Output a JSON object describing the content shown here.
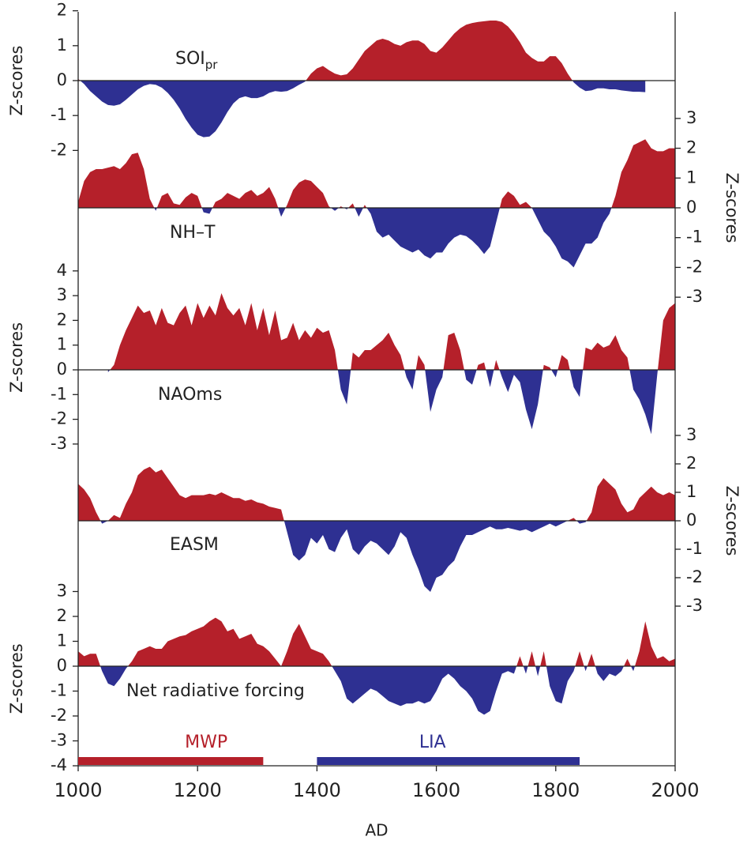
{
  "chart_data": {
    "type": "area",
    "xlabel": "AD",
    "xlim": [
      1000,
      2000
    ],
    "xticks": [
      1000,
      1200,
      1400,
      1600,
      1800,
      2000
    ],
    "x": [
      1000,
      1010,
      1020,
      1030,
      1040,
      1050,
      1060,
      1070,
      1080,
      1090,
      1100,
      1110,
      1120,
      1130,
      1140,
      1150,
      1160,
      1170,
      1180,
      1190,
      1200,
      1210,
      1220,
      1230,
      1240,
      1250,
      1260,
      1270,
      1280,
      1290,
      1300,
      1310,
      1320,
      1330,
      1340,
      1350,
      1360,
      1370,
      1380,
      1390,
      1400,
      1410,
      1420,
      1430,
      1440,
      1450,
      1460,
      1470,
      1480,
      1490,
      1500,
      1510,
      1520,
      1530,
      1540,
      1550,
      1560,
      1570,
      1580,
      1590,
      1600,
      1610,
      1620,
      1630,
      1640,
      1650,
      1660,
      1670,
      1680,
      1690,
      1700,
      1710,
      1720,
      1730,
      1740,
      1750,
      1760,
      1770,
      1780,
      1790,
      1800,
      1810,
      1820,
      1830,
      1840,
      1850,
      1860,
      1870,
      1880,
      1890,
      1900,
      1910,
      1920,
      1930,
      1940,
      1950,
      1960,
      1970,
      1980,
      1990,
      2000
    ],
    "positive_color": "#b5202a",
    "negative_color": "#2e3092",
    "panels": [
      {
        "label": "SOI",
        "label_sub": "pr",
        "ylabel": "Z-scores",
        "axis_side": "left",
        "ylim": [
          -2.2,
          2.2
        ],
        "yticks": [
          -2,
          -1,
          0,
          1,
          2
        ],
        "values": [
          0.05,
          -0.1,
          -0.3,
          -0.45,
          -0.6,
          -0.7,
          -0.72,
          -0.68,
          -0.55,
          -0.4,
          -0.25,
          -0.15,
          -0.1,
          -0.12,
          -0.2,
          -0.35,
          -0.55,
          -0.8,
          -1.1,
          -1.35,
          -1.55,
          -1.62,
          -1.6,
          -1.45,
          -1.2,
          -0.9,
          -0.65,
          -0.5,
          -0.45,
          -0.5,
          -0.5,
          -0.45,
          -0.35,
          -0.3,
          -0.32,
          -0.3,
          -0.22,
          -0.12,
          -0.03,
          0.2,
          0.35,
          0.42,
          0.3,
          0.2,
          0.15,
          0.18,
          0.35,
          0.6,
          0.85,
          1.0,
          1.15,
          1.2,
          1.15,
          1.05,
          1.0,
          1.1,
          1.15,
          1.15,
          1.05,
          0.85,
          0.8,
          0.95,
          1.15,
          1.35,
          1.5,
          1.6,
          1.65,
          1.68,
          1.7,
          1.72,
          1.72,
          1.68,
          1.55,
          1.35,
          1.1,
          0.8,
          0.65,
          0.55,
          0.55,
          0.7,
          0.7,
          0.5,
          0.2,
          -0.05,
          -0.2,
          -0.3,
          -0.28,
          -0.22,
          -0.22,
          -0.25,
          -0.25,
          -0.28,
          -0.3,
          -0.32,
          -0.32,
          -0.33,
          null,
          null,
          null,
          null,
          null
        ]
      },
      {
        "label": "NH–T",
        "ylabel": "Z-scores",
        "axis_side": "right",
        "ylim": [
          -3.3,
          3.4
        ],
        "yticks": [
          -3,
          -2,
          -1,
          0,
          1,
          2,
          3
        ],
        "values": [
          0.2,
          0.9,
          1.2,
          1.3,
          1.3,
          1.35,
          1.4,
          1.3,
          1.5,
          1.8,
          1.85,
          1.3,
          0.3,
          -0.1,
          0.4,
          0.5,
          0.15,
          0.1,
          0.35,
          0.5,
          0.4,
          -0.15,
          -0.2,
          0.2,
          0.3,
          0.5,
          0.4,
          0.3,
          0.5,
          0.6,
          0.4,
          0.5,
          0.7,
          0.3,
          -0.3,
          0.1,
          0.6,
          0.85,
          0.95,
          0.9,
          0.7,
          0.5,
          0.05,
          -0.1,
          0.05,
          -0.05,
          0.15,
          -0.3,
          0.1,
          -0.2,
          -0.8,
          -1.0,
          -0.9,
          -1.1,
          -1.3,
          -1.4,
          -1.5,
          -1.4,
          -1.6,
          -1.7,
          -1.5,
          -1.5,
          -1.2,
          -1.0,
          -0.9,
          -0.95,
          -1.1,
          -1.3,
          -1.55,
          -1.3,
          -0.5,
          0.3,
          0.55,
          0.4,
          0.1,
          0.2,
          0.0,
          -0.4,
          -0.8,
          -1.0,
          -1.3,
          -1.7,
          -1.8,
          -2.0,
          -1.6,
          -1.2,
          -1.2,
          -1.0,
          -0.5,
          -0.2,
          0.4,
          1.2,
          1.6,
          2.1,
          2.2,
          2.3,
          2.0,
          1.9,
          1.9,
          2.0,
          2.0
        ]
      },
      {
        "label": "NAOms",
        "ylabel": "Z-scores",
        "axis_side": "left",
        "ylim": [
          -3.4,
          4.4
        ],
        "yticks": [
          -3,
          -2,
          -1,
          0,
          1,
          2,
          3,
          4
        ],
        "values": [
          null,
          null,
          null,
          null,
          null,
          -0.1,
          0.2,
          1.0,
          1.6,
          2.1,
          2.6,
          2.3,
          2.4,
          1.8,
          2.5,
          1.9,
          1.8,
          2.3,
          2.6,
          1.8,
          2.7,
          2.1,
          2.6,
          2.2,
          3.1,
          2.5,
          2.2,
          2.5,
          1.8,
          2.7,
          1.6,
          2.5,
          1.4,
          2.4,
          1.2,
          1.3,
          1.9,
          1.2,
          1.6,
          1.3,
          1.7,
          1.5,
          1.6,
          0.8,
          -0.8,
          -1.4,
          0.7,
          0.5,
          0.8,
          0.8,
          1.0,
          1.2,
          1.5,
          1.0,
          0.6,
          -0.3,
          -0.8,
          0.6,
          0.2,
          -1.7,
          -0.8,
          -0.3,
          1.4,
          1.5,
          0.8,
          -0.4,
          -0.6,
          0.2,
          0.3,
          -0.7,
          0.4,
          -0.3,
          -0.9,
          -0.2,
          -0.5,
          -1.6,
          -2.4,
          -1.4,
          0.2,
          0.1,
          -0.3,
          0.6,
          0.4,
          -0.7,
          -1.1,
          0.9,
          0.8,
          1.1,
          0.9,
          1.0,
          1.4,
          0.8,
          0.5,
          -0.8,
          -1.2,
          -1.8,
          -2.6,
          -0.2,
          2.0,
          2.5,
          2.7
        ]
      },
      {
        "label": "EASM",
        "ylabel": "Z-scores",
        "axis_side": "right",
        "ylim": [
          -3.3,
          3.4
        ],
        "yticks": [
          -3,
          -2,
          -1,
          0,
          1,
          2,
          3
        ],
        "values": [
          1.3,
          1.1,
          0.8,
          0.3,
          -0.1,
          0.0,
          0.2,
          0.1,
          0.6,
          1.0,
          1.6,
          1.8,
          1.9,
          1.7,
          1.8,
          1.5,
          1.2,
          0.9,
          0.8,
          0.9,
          0.9,
          0.9,
          0.95,
          0.9,
          1.0,
          0.9,
          0.8,
          0.8,
          0.7,
          0.75,
          0.65,
          0.6,
          0.5,
          0.45,
          0.4,
          -0.4,
          -1.2,
          -1.4,
          -1.2,
          -0.6,
          -0.8,
          -0.5,
          -1.0,
          -1.1,
          -0.6,
          -0.3,
          -1.0,
          -1.2,
          -0.9,
          -0.7,
          -0.8,
          -1.0,
          -1.2,
          -0.9,
          -0.4,
          -0.6,
          -1.2,
          -1.7,
          -2.3,
          -2.5,
          -2.0,
          -1.9,
          -1.6,
          -1.4,
          -0.9,
          -0.5,
          -0.5,
          -0.4,
          -0.3,
          -0.2,
          -0.3,
          -0.3,
          -0.25,
          -0.3,
          -0.35,
          -0.3,
          -0.4,
          -0.3,
          -0.2,
          -0.1,
          -0.2,
          -0.1,
          0.0,
          0.1,
          -0.1,
          -0.05,
          0.3,
          1.2,
          1.5,
          1.3,
          1.1,
          0.6,
          0.3,
          0.4,
          0.8,
          1.0,
          1.2,
          1.0,
          0.9,
          1.0,
          0.9
        ]
      },
      {
        "label": "Net radiative forcing",
        "ylabel": "Z-scores",
        "axis_side": "left",
        "ylim": [
          -4,
          3.6
        ],
        "yticks": [
          -4,
          -3,
          -2,
          -1,
          0,
          1,
          2,
          3
        ],
        "values": [
          0.6,
          0.4,
          0.5,
          0.5,
          -0.2,
          -0.7,
          -0.8,
          -0.5,
          -0.1,
          0.2,
          0.6,
          0.7,
          0.8,
          0.7,
          0.7,
          1.0,
          1.1,
          1.2,
          1.25,
          1.4,
          1.5,
          1.6,
          1.8,
          1.95,
          1.8,
          1.4,
          1.5,
          1.1,
          1.2,
          1.3,
          0.9,
          0.8,
          0.6,
          0.3,
          0.0,
          0.6,
          1.3,
          1.7,
          1.2,
          0.7,
          0.6,
          0.5,
          0.2,
          -0.2,
          -0.6,
          -1.3,
          -1.5,
          -1.3,
          -1.1,
          -0.9,
          -1.0,
          -1.2,
          -1.4,
          -1.5,
          -1.6,
          -1.5,
          -1.5,
          -1.4,
          -1.5,
          -1.4,
          -1.0,
          -0.5,
          -0.3,
          -0.5,
          -0.8,
          -1.0,
          -1.3,
          -1.8,
          -1.95,
          -1.8,
          -1.0,
          -0.3,
          -0.2,
          -0.3,
          0.4,
          -0.3,
          0.6,
          -0.4,
          0.6,
          -0.8,
          -1.4,
          -1.5,
          -0.6,
          -0.2,
          0.6,
          -0.2,
          0.5,
          -0.3,
          -0.6,
          -0.3,
          -0.4,
          -0.2,
          0.3,
          -0.2,
          0.6,
          1.8,
          0.8,
          0.3,
          0.4,
          0.2,
          0.3
        ]
      }
    ],
    "periods": [
      {
        "label": "MWP",
        "start": 1000,
        "end": 1310,
        "color": "#b5202a"
      },
      {
        "label": "LIA",
        "start": 1400,
        "end": 1840,
        "color": "#2e3092"
      }
    ]
  }
}
